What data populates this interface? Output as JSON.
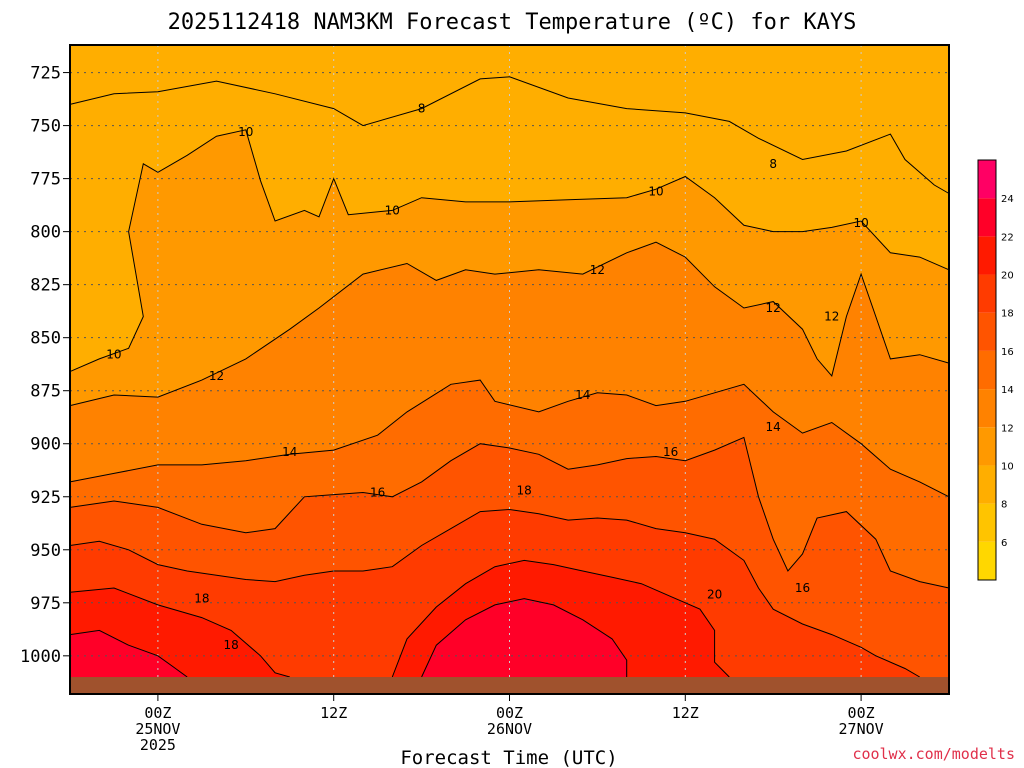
{
  "chart_data": {
    "type": "heatmap",
    "title": "2025112418 NAM3KM Forecast Temperature (ºC) for KAYS",
    "xlabel": "Forecast Time (UTC)",
    "ylabel": "",
    "credit": "coolwx.com/modelts",
    "x_unit": "hours after 2025-11-24 18Z",
    "xlim": [
      0,
      60
    ],
    "y_unit": "hPa",
    "ylim": [
      712,
      1018
    ],
    "ground_level_hpa": 1010,
    "y_ticks": [
      725,
      750,
      775,
      800,
      825,
      850,
      875,
      900,
      925,
      950,
      975,
      1000
    ],
    "x_ticks": [
      {
        "hour": 6,
        "lines": [
          "00Z",
          "25NOV",
          "2025"
        ]
      },
      {
        "hour": 18,
        "lines": [
          "12Z"
        ]
      },
      {
        "hour": 30,
        "lines": [
          "00Z",
          "26NOV"
        ]
      },
      {
        "hour": 42,
        "lines": [
          "12Z"
        ]
      },
      {
        "hour": 54,
        "lines": [
          "00Z",
          "27NOV"
        ]
      }
    ],
    "colorbar": {
      "levels": [
        4,
        6,
        8,
        10,
        12,
        14,
        16,
        18,
        20,
        22,
        24,
        26
      ],
      "labels": [
        "6",
        "8",
        "10",
        "12",
        "14",
        "16",
        "18",
        "20",
        "22",
        "24"
      ],
      "colors": [
        "#ffd700",
        "#ffc400",
        "#ffae00",
        "#ff9900",
        "#ff8200",
        "#ff6c00",
        "#ff5400",
        "#ff3b00",
        "#ff1a00",
        "#ff0028",
        "#ff0064"
      ]
    },
    "contours": [
      {
        "value": 8,
        "band": 2,
        "points": [
          [
            0,
            740
          ],
          [
            3,
            735
          ],
          [
            6,
            734
          ],
          [
            10,
            729
          ],
          [
            14,
            735
          ],
          [
            18,
            742
          ],
          [
            20,
            750
          ],
          [
            24,
            742
          ],
          [
            28,
            728
          ],
          [
            30,
            727
          ],
          [
            34,
            737
          ],
          [
            38,
            742
          ],
          [
            42,
            744
          ],
          [
            45,
            748
          ],
          [
            47,
            756
          ],
          [
            50,
            766
          ],
          [
            53,
            762
          ],
          [
            56,
            754
          ],
          [
            57,
            766
          ],
          [
            59,
            778
          ],
          [
            60,
            782
          ]
        ]
      },
      {
        "value": 10,
        "band": 3,
        "points": [
          [
            0,
            866
          ],
          [
            2,
            860
          ],
          [
            4,
            855
          ],
          [
            5,
            840
          ],
          [
            4,
            800
          ],
          [
            5,
            768
          ],
          [
            6,
            772
          ],
          [
            8,
            764
          ],
          [
            10,
            755
          ],
          [
            12,
            752
          ],
          [
            13,
            776
          ],
          [
            14,
            795
          ],
          [
            16,
            790
          ],
          [
            17,
            793
          ],
          [
            18,
            775
          ],
          [
            19,
            792
          ],
          [
            22,
            790
          ],
          [
            24,
            784
          ],
          [
            27,
            786
          ],
          [
            30,
            786
          ],
          [
            34,
            785
          ],
          [
            38,
            784
          ],
          [
            40,
            780
          ],
          [
            42,
            774
          ],
          [
            44,
            784
          ],
          [
            46,
            797
          ],
          [
            48,
            800
          ],
          [
            50,
            800
          ],
          [
            52,
            798
          ],
          [
            54,
            795
          ],
          [
            56,
            810
          ],
          [
            58,
            812
          ],
          [
            60,
            818
          ]
        ]
      },
      {
        "value": 12,
        "band": 4,
        "points": [
          [
            0,
            882
          ],
          [
            3,
            877
          ],
          [
            6,
            878
          ],
          [
            9,
            870
          ],
          [
            12,
            860
          ],
          [
            15,
            846
          ],
          [
            17,
            836
          ],
          [
            20,
            820
          ],
          [
            23,
            815
          ],
          [
            25,
            823
          ],
          [
            27,
            818
          ],
          [
            29,
            820
          ],
          [
            32,
            818
          ],
          [
            35,
            820
          ],
          [
            38,
            810
          ],
          [
            40,
            805
          ],
          [
            42,
            812
          ],
          [
            44,
            826
          ],
          [
            46,
            836
          ],
          [
            48,
            833
          ],
          [
            50,
            846
          ],
          [
            51,
            860
          ],
          [
            52,
            868
          ],
          [
            53,
            840
          ],
          [
            54,
            820
          ],
          [
            55,
            840
          ],
          [
            56,
            860
          ],
          [
            58,
            858
          ],
          [
            60,
            862
          ]
        ]
      },
      {
        "value": 14,
        "band": 5,
        "points": [
          [
            0,
            918
          ],
          [
            3,
            914
          ],
          [
            6,
            910
          ],
          [
            9,
            910
          ],
          [
            12,
            908
          ],
          [
            15,
            905
          ],
          [
            18,
            903
          ],
          [
            21,
            896
          ],
          [
            23,
            885
          ],
          [
            26,
            872
          ],
          [
            28,
            870
          ],
          [
            29,
            880
          ],
          [
            32,
            885
          ],
          [
            34,
            880
          ],
          [
            36,
            876
          ],
          [
            38,
            877
          ],
          [
            40,
            882
          ],
          [
            42,
            880
          ],
          [
            44,
            876
          ],
          [
            46,
            872
          ],
          [
            48,
            885
          ],
          [
            50,
            895
          ],
          [
            52,
            890
          ],
          [
            54,
            900
          ],
          [
            56,
            912
          ],
          [
            58,
            918
          ],
          [
            60,
            925
          ]
        ]
      },
      {
        "value": 16,
        "band": 6,
        "points": [
          [
            0,
            930
          ],
          [
            3,
            927
          ],
          [
            6,
            930
          ],
          [
            9,
            938
          ],
          [
            12,
            942
          ],
          [
            14,
            940
          ],
          [
            16,
            925
          ],
          [
            18,
            924
          ],
          [
            20,
            923
          ],
          [
            22,
            925
          ],
          [
            24,
            918
          ],
          [
            26,
            908
          ],
          [
            28,
            900
          ],
          [
            30,
            902
          ],
          [
            32,
            905
          ],
          [
            34,
            912
          ],
          [
            36,
            910
          ],
          [
            38,
            907
          ],
          [
            40,
            906
          ],
          [
            42,
            908
          ],
          [
            44,
            903
          ],
          [
            46,
            897
          ],
          [
            47,
            925
          ],
          [
            48,
            945
          ],
          [
            49,
            960
          ],
          [
            50,
            952
          ],
          [
            51,
            935
          ],
          [
            53,
            932
          ],
          [
            55,
            945
          ],
          [
            56,
            960
          ],
          [
            58,
            965
          ],
          [
            60,
            968
          ]
        ]
      },
      {
        "value": 18,
        "band": 7,
        "points": [
          [
            0,
            948
          ],
          [
            2,
            946
          ],
          [
            4,
            950
          ],
          [
            6,
            957
          ],
          [
            8,
            960
          ],
          [
            10,
            962
          ],
          [
            12,
            964
          ],
          [
            14,
            965
          ],
          [
            16,
            962
          ],
          [
            18,
            960
          ],
          [
            20,
            960
          ],
          [
            22,
            958
          ],
          [
            24,
            948
          ],
          [
            26,
            940
          ],
          [
            28,
            932
          ],
          [
            30,
            931
          ],
          [
            32,
            933
          ],
          [
            34,
            936
          ],
          [
            36,
            935
          ],
          [
            38,
            936
          ],
          [
            40,
            940
          ],
          [
            42,
            942
          ],
          [
            44,
            945
          ],
          [
            46,
            955
          ],
          [
            47,
            968
          ],
          [
            48,
            978
          ],
          [
            50,
            985
          ],
          [
            52,
            990
          ],
          [
            54,
            996
          ],
          [
            55,
            1000
          ],
          [
            57,
            1006
          ],
          [
            58,
            1010
          ]
        ]
      },
      {
        "value": 20,
        "band": 8,
        "points": [
          [
            0,
            970
          ],
          [
            3,
            968
          ],
          [
            6,
            976
          ],
          [
            9,
            982
          ],
          [
            11,
            988
          ],
          [
            13,
            1000
          ],
          [
            14,
            1008
          ],
          [
            15,
            1010
          ]
        ]
      },
      {
        "value": 20,
        "band": 8,
        "points": [
          [
            22,
            1010
          ],
          [
            23,
            992
          ],
          [
            25,
            977
          ],
          [
            27,
            966
          ],
          [
            29,
            958
          ],
          [
            31,
            955
          ],
          [
            33,
            957
          ],
          [
            35,
            960
          ],
          [
            37,
            963
          ],
          [
            39,
            966
          ],
          [
            41,
            972
          ],
          [
            43,
            978
          ],
          [
            44,
            988
          ],
          [
            44,
            1003
          ],
          [
            45,
            1010
          ]
        ]
      },
      {
        "value": 22,
        "band": 9,
        "points": [
          [
            0,
            990
          ],
          [
            2,
            988
          ],
          [
            4,
            995
          ],
          [
            6,
            1000
          ],
          [
            7,
            1005
          ],
          [
            8,
            1010
          ]
        ]
      },
      {
        "value": 22,
        "band": 9,
        "points": [
          [
            24,
            1010
          ],
          [
            25,
            995
          ],
          [
            27,
            983
          ],
          [
            29,
            976
          ],
          [
            31,
            973
          ],
          [
            33,
            976
          ],
          [
            35,
            983
          ],
          [
            37,
            992
          ],
          [
            38,
            1002
          ],
          [
            38,
            1010
          ]
        ]
      }
    ],
    "labels": [
      {
        "text": "8",
        "hour": 24,
        "hpa": 742
      },
      {
        "text": "8",
        "hour": 48,
        "hpa": 768
      },
      {
        "text": "10",
        "hour": 12,
        "hpa": 753
      },
      {
        "text": "10",
        "hour": 22,
        "hpa": 790
      },
      {
        "text": "10",
        "hour": 40,
        "hpa": 781
      },
      {
        "text": "10",
        "hour": 54,
        "hpa": 796
      },
      {
        "text": "10",
        "hour": 3,
        "hpa": 858
      },
      {
        "text": "12",
        "hour": 10,
        "hpa": 868
      },
      {
        "text": "12",
        "hour": 36,
        "hpa": 818
      },
      {
        "text": "12",
        "hour": 48,
        "hpa": 836
      },
      {
        "text": "12",
        "hour": 52,
        "hpa": 840
      },
      {
        "text": "14",
        "hour": 15,
        "hpa": 904
      },
      {
        "text": "14",
        "hour": 35,
        "hpa": 877
      },
      {
        "text": "14",
        "hour": 48,
        "hpa": 892
      },
      {
        "text": "16",
        "hour": 21,
        "hpa": 923
      },
      {
        "text": "16",
        "hour": 41,
        "hpa": 904
      },
      {
        "text": "16",
        "hour": 50,
        "hpa": 968
      },
      {
        "text": "18",
        "hour": 9,
        "hpa": 973
      },
      {
        "text": "18",
        "hour": 11,
        "hpa": 995
      },
      {
        "text": "18",
        "hour": 31,
        "hpa": 922
      },
      {
        "text": "20",
        "hour": 44,
        "hpa": 971
      }
    ]
  }
}
